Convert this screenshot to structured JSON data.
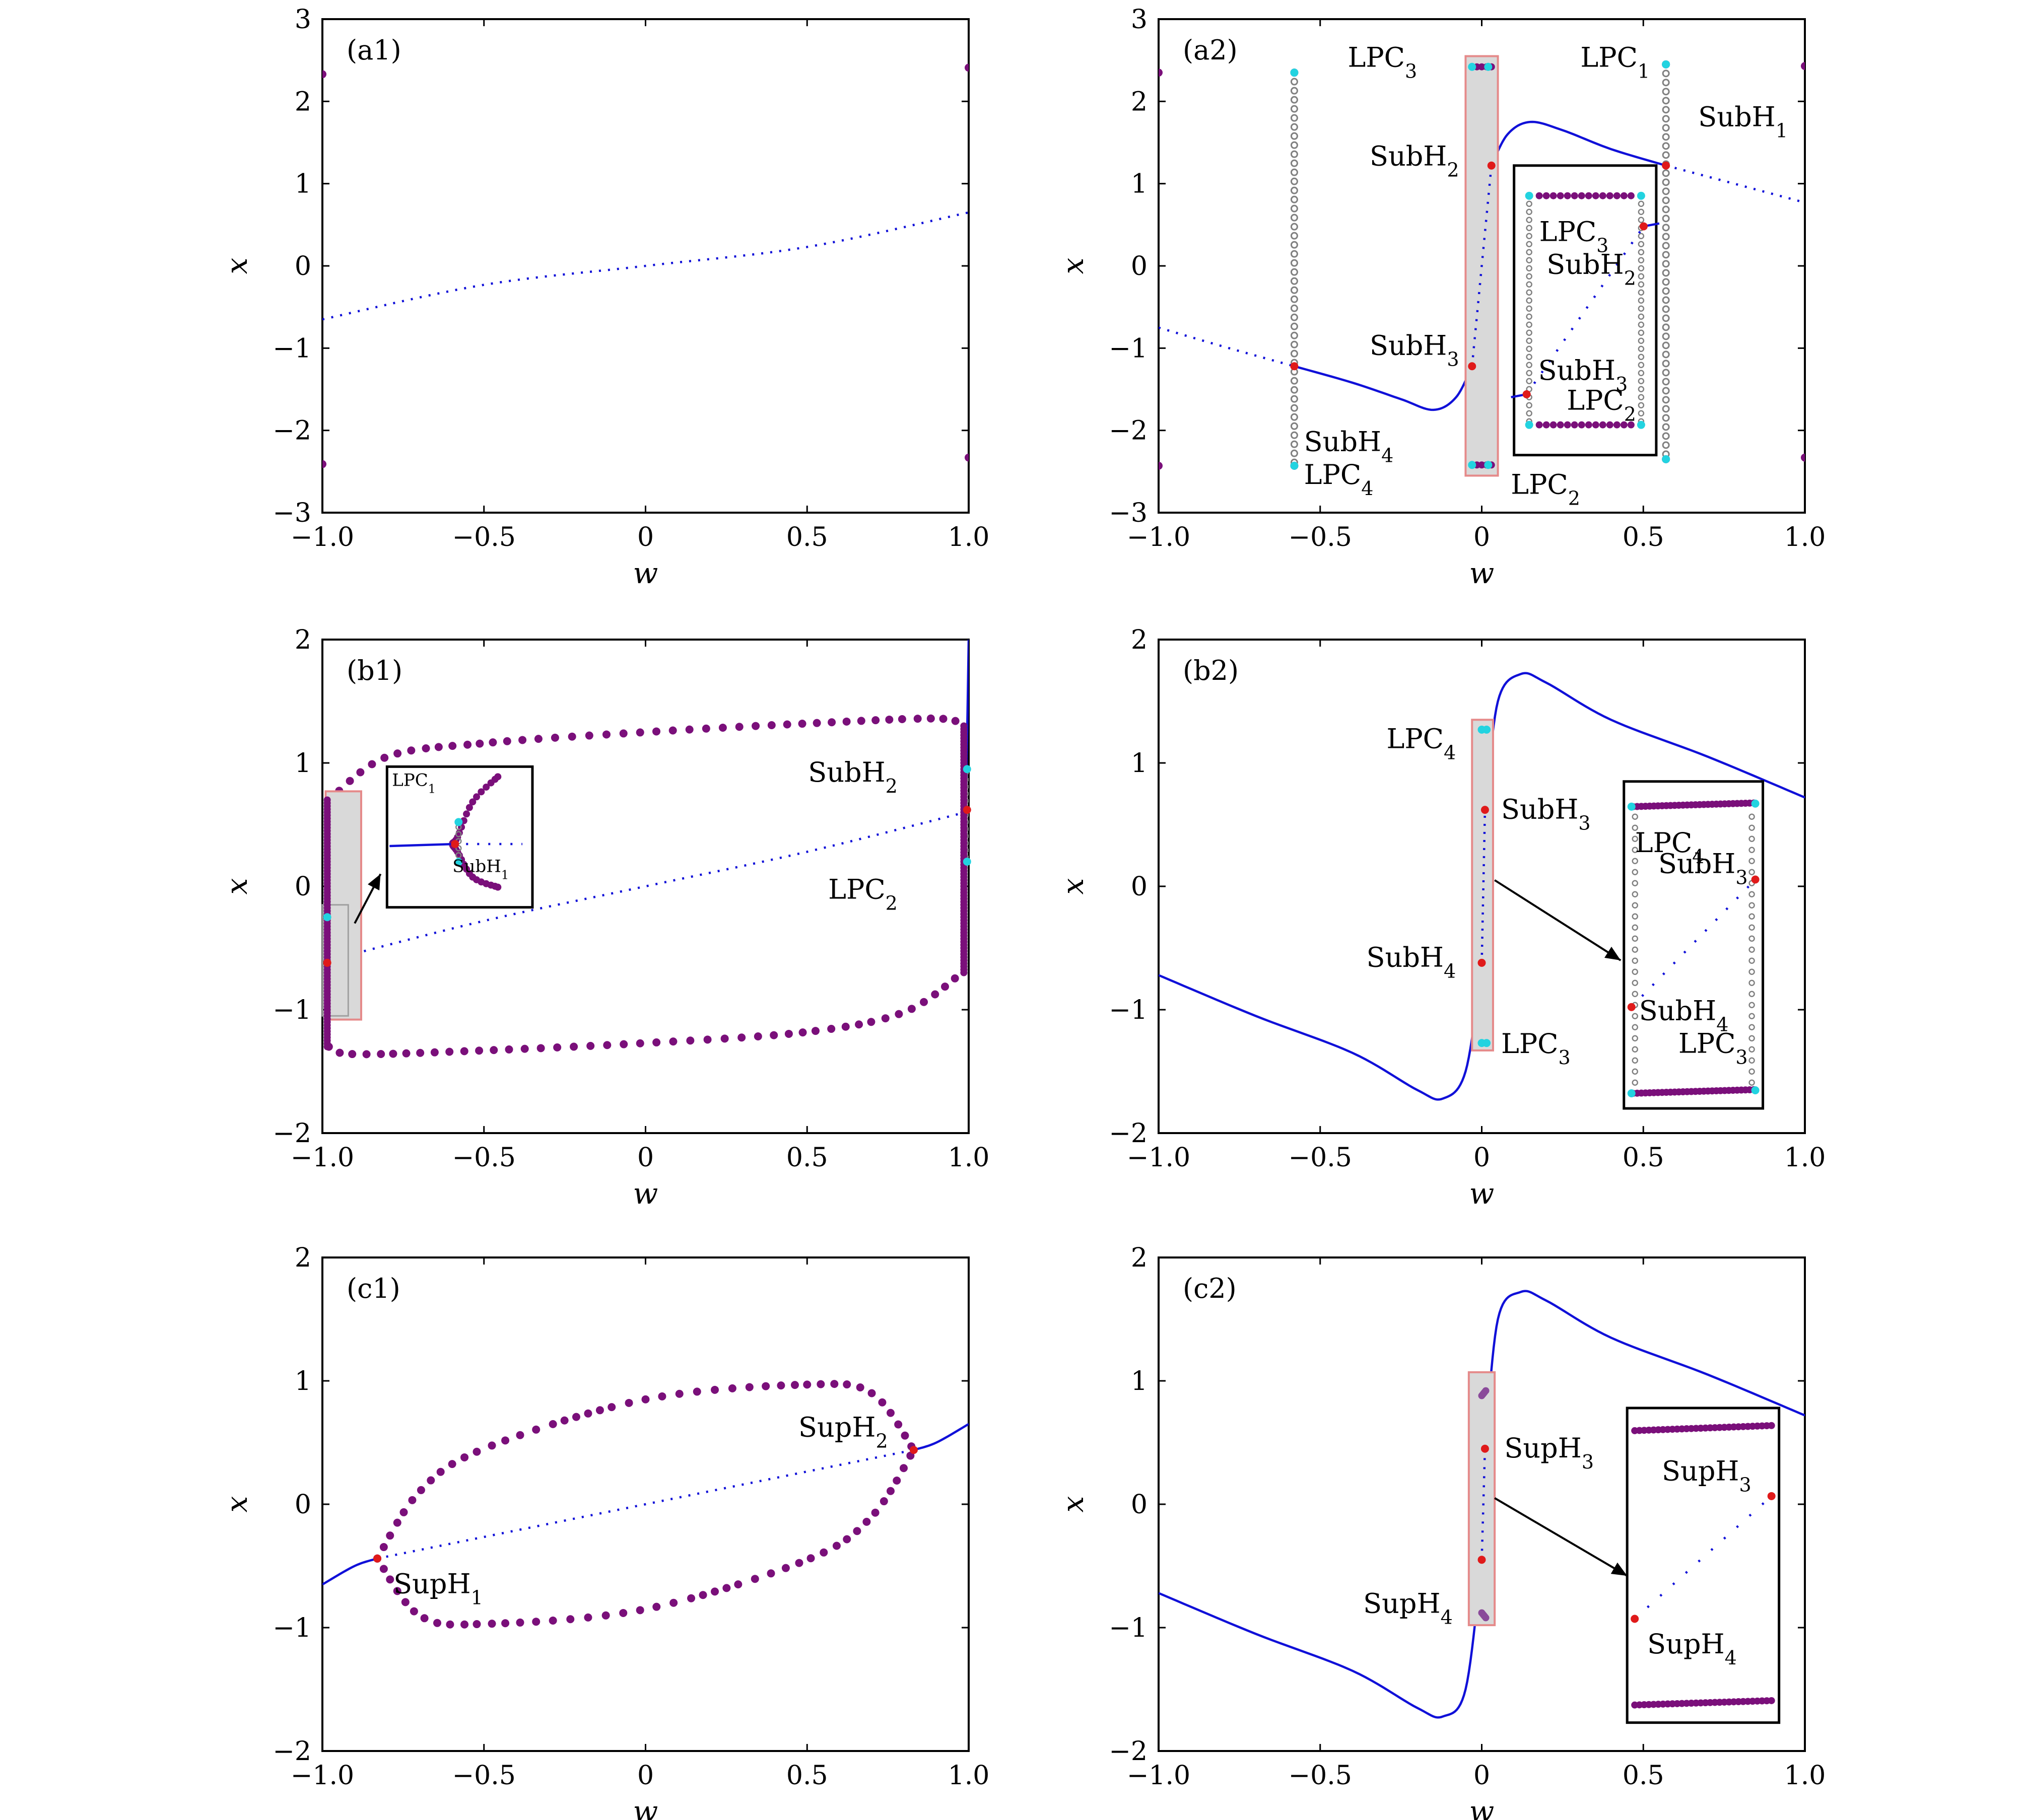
{
  "colors": {
    "stable_equilibrium": "#1010d8",
    "unstable_equilibrium": "#1010d8",
    "stable_cycle": "#7a0f7a",
    "unstable_cycle": "#808080",
    "lpc_point": "#22d3e0",
    "hopf_point": "#e01a1a",
    "highlight_fill": "#d9d9d9",
    "highlight_stroke": "#e58a8a"
  },
  "chart_data": [
    {
      "id": "a1",
      "type": "line",
      "panel_label": "(a1)",
      "xlabel": "w",
      "ylabel": "x",
      "xlim": [
        -1.0,
        1.0
      ],
      "ylim": [
        -3,
        3
      ],
      "xticks": [
        "−1.0",
        "−0.5",
        "0",
        "0.5",
        "1.0"
      ],
      "yticks": [
        "−3",
        "−2",
        "−1",
        "0",
        "1",
        "2",
        "3"
      ],
      "series": [
        {
          "style": "unstable_equilibrium",
          "x": [
            -1.0,
            -0.5,
            0.0,
            0.5,
            1.0
          ],
          "y": [
            -0.65,
            -0.23,
            0.0,
            0.23,
            0.65
          ]
        },
        {
          "style": "stable_cycle_max",
          "x": [
            -1.0,
            1.0
          ],
          "y": [
            2.33,
            2.41
          ]
        },
        {
          "style": "stable_cycle_min",
          "x": [
            -1.0,
            1.0
          ],
          "y": [
            -2.41,
            -2.33
          ]
        }
      ],
      "annotations": []
    },
    {
      "id": "a2",
      "type": "line",
      "panel_label": "(a2)",
      "xlabel": "w",
      "ylabel": "x",
      "xlim": [
        -1.0,
        1.0
      ],
      "ylim": [
        -3,
        3
      ],
      "xticks": [
        "−1.0",
        "−0.5",
        "0",
        "0.5",
        "1.0"
      ],
      "yticks": [
        "−3",
        "−2",
        "−1",
        "0",
        "1",
        "2",
        "3"
      ],
      "series": [
        {
          "style": "unstable_equilibrium",
          "x": [
            -1.0,
            -0.8,
            -0.58
          ],
          "y": [
            -0.75,
            -0.98,
            -1.22
          ]
        },
        {
          "style": "stable_equilibrium",
          "x": [
            -0.58,
            -0.4,
            -0.25,
            -0.15,
            -0.08,
            -0.03
          ],
          "y": [
            -1.22,
            -1.42,
            -1.62,
            -1.75,
            -1.6,
            -1.22
          ]
        },
        {
          "style": "unstable_equilibrium",
          "x": [
            -0.03,
            0.03
          ],
          "y": [
            -1.22,
            1.22
          ]
        },
        {
          "style": "stable_equilibrium",
          "x": [
            0.03,
            0.08,
            0.15,
            0.25,
            0.4,
            0.57
          ],
          "y": [
            1.22,
            1.6,
            1.75,
            1.65,
            1.42,
            1.22
          ]
        },
        {
          "style": "unstable_equilibrium",
          "x": [
            0.57,
            0.8,
            1.0
          ],
          "y": [
            1.22,
            0.98,
            0.77
          ]
        },
        {
          "style": "stable_cycle_max",
          "x": [
            -1.0,
            -0.58
          ],
          "y": [
            2.35,
            2.35
          ]
        },
        {
          "style": "stable_cycle_min",
          "x": [
            -1.0,
            -0.58
          ],
          "y": [
            -2.43,
            -2.43
          ]
        },
        {
          "style": "stable_cycle_max",
          "x": [
            0.57,
            1.0
          ],
          "y": [
            2.45,
            2.43
          ]
        },
        {
          "style": "stable_cycle_min",
          "x": [
            0.57,
            1.0
          ],
          "y": [
            -2.35,
            -2.33
          ]
        }
      ],
      "special_points": [
        {
          "type": "hopf",
          "x": -0.58,
          "y": -1.22
        },
        {
          "type": "hopf",
          "x": -0.03,
          "y": -1.22
        },
        {
          "type": "hopf",
          "x": 0.03,
          "y": 1.22
        },
        {
          "type": "hopf",
          "x": 0.57,
          "y": 1.22
        },
        {
          "type": "lpc",
          "x": -0.58,
          "y": 2.35
        },
        {
          "type": "lpc",
          "x": -0.58,
          "y": -2.43
        },
        {
          "type": "lpc",
          "x": 0.57,
          "y": 2.45
        },
        {
          "type": "lpc",
          "x": 0.57,
          "y": -2.35
        }
      ],
      "annotations": [
        {
          "label": "LPC",
          "sub": "3"
        },
        {
          "label": "LPC",
          "sub": "1"
        },
        {
          "label": "SubH",
          "sub": "1"
        },
        {
          "label": "SubH",
          "sub": "2"
        },
        {
          "label": "LPC",
          "sub": "3"
        },
        {
          "label": "SubH",
          "sub": "2"
        },
        {
          "label": "SubH",
          "sub": "3"
        },
        {
          "label": "SubH",
          "sub": "3"
        },
        {
          "label": "LPC",
          "sub": "2"
        },
        {
          "label": "SubH",
          "sub": "4"
        },
        {
          "label": "LPC",
          "sub": "4"
        },
        {
          "label": "LPC",
          "sub": "2"
        }
      ]
    },
    {
      "id": "b1",
      "type": "line",
      "panel_label": "(b1)",
      "xlabel": "w",
      "ylabel": "x",
      "xlim": [
        -1.0,
        1.0
      ],
      "ylim": [
        -2,
        2
      ],
      "xticks": [
        "−1.0",
        "−0.5",
        "0",
        "0.5",
        "1.0"
      ],
      "yticks": [
        "−2",
        "−1",
        "0",
        "1",
        "2"
      ],
      "series": [
        {
          "style": "unstable_equilibrium",
          "x": [
            -0.98,
            -0.5,
            0.0,
            0.5,
            0.99
          ],
          "y": [
            -0.6,
            -0.28,
            0.0,
            0.28,
            0.6
          ]
        },
        {
          "style": "stable_equilibrium",
          "x": [
            0.99,
            0.995,
            1.0
          ],
          "y": [
            0.62,
            1.2,
            2.0
          ]
        },
        {
          "style": "stable_cycle_max",
          "x": [
            -0.98,
            -0.8,
            -0.5,
            0.0,
            0.5,
            0.9,
            0.98
          ],
          "y": [
            0.7,
            1.05,
            1.16,
            1.25,
            1.32,
            1.36,
            1.3
          ]
        },
        {
          "style": "stable_cycle_min",
          "x": [
            -0.98,
            -0.9,
            -0.5,
            0.0,
            0.5,
            0.8,
            0.98
          ],
          "y": [
            -1.3,
            -1.36,
            -1.33,
            -1.27,
            -1.18,
            -1.02,
            -0.7
          ]
        }
      ],
      "annotations": [
        {
          "label": "SubH",
          "sub": "2"
        },
        {
          "label": "LPC",
          "sub": "2"
        },
        {
          "label": "LPC",
          "sub": "1"
        },
        {
          "label": "SubH",
          "sub": "1"
        }
      ]
    },
    {
      "id": "b2",
      "type": "line",
      "panel_label": "(b2)",
      "xlabel": "w",
      "ylabel": "x",
      "xlim": [
        -1.0,
        1.0
      ],
      "ylim": [
        -2,
        2
      ],
      "xticks": [
        "−1.0",
        "−0.5",
        "0",
        "0.5",
        "1.0"
      ],
      "yticks": [
        "−2",
        "−1",
        "0",
        "1",
        "2"
      ],
      "series": [
        {
          "style": "stable_equilibrium",
          "x": [
            -1.0,
            -0.7,
            -0.4,
            -0.2,
            -0.12,
            -0.05,
            0.0
          ],
          "y": [
            -0.72,
            -1.05,
            -1.35,
            -1.65,
            -1.72,
            -1.5,
            -0.65
          ]
        },
        {
          "style": "unstable_equilibrium",
          "x": [
            0.0,
            0.01
          ],
          "y": [
            -0.65,
            0.62
          ]
        },
        {
          "style": "stable_equilibrium",
          "x": [
            0.01,
            0.05,
            0.12,
            0.2,
            0.4,
            0.7,
            1.0
          ],
          "y": [
            0.62,
            1.5,
            1.72,
            1.65,
            1.35,
            1.05,
            0.72
          ]
        }
      ],
      "annotations": [
        {
          "label": "LPC",
          "sub": "4"
        },
        {
          "label": "SubH",
          "sub": "3"
        },
        {
          "label": "SubH",
          "sub": "4"
        },
        {
          "label": "LPC",
          "sub": "3"
        },
        {
          "label": "LPC",
          "sub": "4"
        },
        {
          "label": "SubH",
          "sub": "3"
        },
        {
          "label": "SubH",
          "sub": "4"
        },
        {
          "label": "LPC",
          "sub": "3"
        }
      ]
    },
    {
      "id": "c1",
      "type": "line",
      "panel_label": "(c1)",
      "xlabel": "w",
      "ylabel": "x",
      "xlim": [
        -1.0,
        1.0
      ],
      "ylim": [
        -2,
        2
      ],
      "xticks": [
        "−1.0",
        "−0.5",
        "0",
        "0.5",
        "1.0"
      ],
      "yticks": [
        "−2",
        "−1",
        "0",
        "1",
        "2"
      ],
      "series": [
        {
          "style": "stable_equilibrium",
          "x": [
            -1.0,
            -0.9,
            -0.83
          ],
          "y": [
            -0.65,
            -0.5,
            -0.44
          ]
        },
        {
          "style": "unstable_equilibrium",
          "x": [
            -0.83,
            0.0,
            0.83
          ],
          "y": [
            -0.44,
            0.0,
            0.44
          ]
        },
        {
          "style": "stable_equilibrium",
          "x": [
            0.83,
            0.9,
            1.0
          ],
          "y": [
            0.44,
            0.5,
            0.65
          ]
        },
        {
          "style": "stable_cycle_max",
          "x": [
            -0.83,
            -0.7,
            -0.5,
            0.0,
            0.5,
            0.7,
            0.83
          ],
          "y": [
            -0.44,
            0.1,
            0.45,
            0.85,
            0.97,
            0.9,
            0.44
          ]
        },
        {
          "style": "stable_cycle_min",
          "x": [
            -0.83,
            -0.7,
            -0.5,
            0.0,
            0.5,
            0.7,
            0.83
          ],
          "y": [
            -0.44,
            -0.9,
            -0.97,
            -0.85,
            -0.45,
            -0.1,
            0.44
          ]
        }
      ],
      "annotations": [
        {
          "label": "SupH",
          "sub": "2"
        },
        {
          "label": "SupH",
          "sub": "1"
        }
      ]
    },
    {
      "id": "c2",
      "type": "line",
      "panel_label": "(c2)",
      "xlabel": "w",
      "ylabel": "x",
      "xlim": [
        -1.0,
        1.0
      ],
      "ylim": [
        -2,
        2
      ],
      "xticks": [
        "−1.0",
        "−0.5",
        "0",
        "0.5",
        "1.0"
      ],
      "yticks": [
        "−2",
        "−1",
        "0",
        "1",
        "2"
      ],
      "series": [
        {
          "style": "stable_equilibrium",
          "x": [
            -1.0,
            -0.7,
            -0.4,
            -0.2,
            -0.12,
            -0.05,
            0.0
          ],
          "y": [
            -0.72,
            -1.05,
            -1.35,
            -1.65,
            -1.72,
            -1.5,
            -0.45
          ]
        },
        {
          "style": "unstable_equilibrium",
          "x": [
            0.0,
            0.01
          ],
          "y": [
            -0.45,
            0.45
          ]
        },
        {
          "style": "stable_equilibrium",
          "x": [
            0.01,
            0.05,
            0.12,
            0.2,
            0.4,
            0.7,
            1.0
          ],
          "y": [
            0.45,
            1.5,
            1.72,
            1.65,
            1.35,
            1.05,
            0.72
          ]
        }
      ],
      "annotations": [
        {
          "label": "SupH",
          "sub": "3"
        },
        {
          "label": "SupH",
          "sub": "4"
        },
        {
          "label": "SupH",
          "sub": "3"
        },
        {
          "label": "SupH",
          "sub": "4"
        }
      ]
    }
  ]
}
